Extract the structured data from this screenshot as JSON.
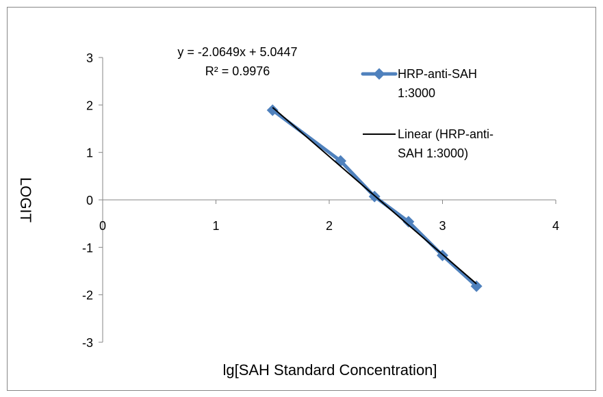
{
  "chart_data": {
    "type": "scatter",
    "title": "",
    "xlabel": "lg[SAH Standard Concentration]",
    "ylabel": "LOGIT",
    "xlim": [
      0,
      4
    ],
    "ylim": [
      -3,
      3
    ],
    "x_ticks": [
      0,
      1,
      2,
      3,
      4
    ],
    "y_ticks": [
      -3,
      -2,
      -1,
      0,
      1,
      2,
      3
    ],
    "x_tick_labels": [
      "0",
      "1",
      "2",
      "3",
      "4"
    ],
    "y_tick_labels": [
      "-3",
      "-2",
      "-1",
      "0",
      "1",
      "2",
      "3"
    ],
    "grid": false,
    "legend_position": "right",
    "series": [
      {
        "name": "HRP-anti-SAH 1:3000",
        "legend_lines": [
          "HRP-anti-SAH",
          "1:3000"
        ],
        "marker": "diamond",
        "color": "#4f81bd",
        "x": [
          1.5,
          2.1,
          2.4,
          2.7,
          3.0,
          3.3
        ],
        "y": [
          1.89,
          0.82,
          0.07,
          -0.46,
          -1.17,
          -1.82
        ]
      }
    ],
    "trendline": {
      "name": "Linear (HRP-anti-SAH 1:3000)",
      "legend_lines": [
        "Linear (HRP-anti-",
        "SAH 1:3000)"
      ],
      "type": "linear",
      "color": "#000000",
      "slope": -2.0649,
      "intercept": 5.0447,
      "x_range": [
        1.5,
        3.3
      ]
    },
    "annotations": [
      {
        "text": "y = -2.0649x + 5.0447"
      },
      {
        "text": "R² = 0.9976"
      }
    ]
  }
}
